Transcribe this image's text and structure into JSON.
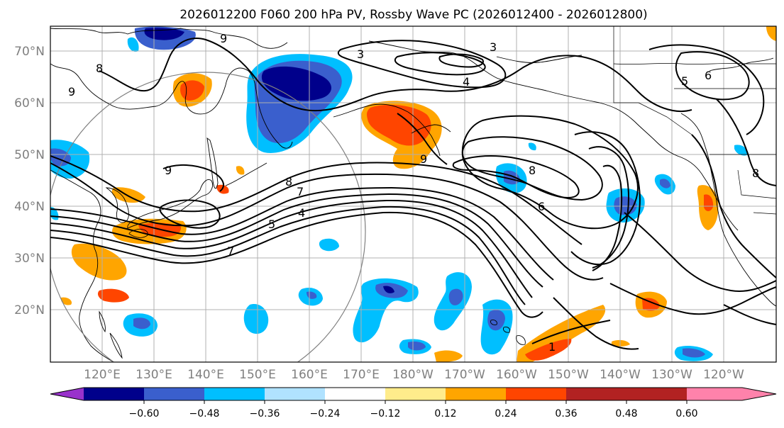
{
  "title": "2026012200 F060 200 hPa PV, Rossby Wave PC (2026012400 - 2026012800)",
  "lat_labels": [
    "70°N",
    "60°N",
    "50°N",
    "40°N",
    "30°N",
    "20°N"
  ],
  "lon_labels": [
    "120°E",
    "130°E",
    "140°E",
    "150°E",
    "160°E",
    "170°E",
    "180°W",
    "170°W",
    "160°W",
    "150°W",
    "140°W",
    "130°W",
    "120°W"
  ],
  "colorbar": {
    "colors": [
      "#9932cc",
      "#00008b",
      "#3a5fcd",
      "#00bfff",
      "#b0e2ff",
      "#ffffff",
      "#ffec8b",
      "#ffa500",
      "#ff4500",
      "#b22222",
      "#ff82ab"
    ],
    "tick_labels": [
      "−0.60",
      "−0.48",
      "−0.36",
      "−0.24",
      "−0.12",
      "0.12",
      "0.24",
      "0.36",
      "0.48",
      "0.60"
    ]
  },
  "contour_labels": [
    "1",
    "3",
    "3",
    "4",
    "4",
    "5",
    "5",
    "6",
    "6",
    "7",
    "7",
    "8",
    "8",
    "8",
    "8",
    "9",
    "9",
    "9",
    "9"
  ],
  "icons": {
    "map": "north-pacific-map"
  }
}
